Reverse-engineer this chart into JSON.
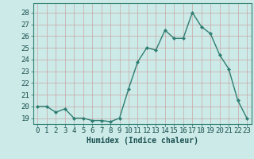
{
  "x": [
    0,
    1,
    2,
    3,
    4,
    5,
    6,
    7,
    8,
    9,
    10,
    11,
    12,
    13,
    14,
    15,
    16,
    17,
    18,
    19,
    20,
    21,
    22,
    23
  ],
  "y": [
    20,
    20,
    19.5,
    19.8,
    19,
    19,
    18.8,
    18.8,
    18.7,
    19,
    21.5,
    23.8,
    25,
    24.8,
    26.5,
    25.8,
    25.8,
    28,
    26.8,
    26.2,
    24.4,
    23.2,
    20.5,
    19
  ],
  "line_color": "#2e7d72",
  "marker": "D",
  "marker_size": 2.2,
  "line_width": 1.0,
  "bg_color": "#cceae7",
  "grid_color": "#c8a0a0",
  "xlabel": "Humidex (Indice chaleur)",
  "yticks": [
    19,
    20,
    21,
    22,
    23,
    24,
    25,
    26,
    27,
    28
  ],
  "ylim": [
    18.5,
    28.8
  ],
  "xlim": [
    -0.5,
    23.5
  ],
  "xticks": [
    0,
    1,
    2,
    3,
    4,
    5,
    6,
    7,
    8,
    9,
    10,
    11,
    12,
    13,
    14,
    15,
    16,
    17,
    18,
    19,
    20,
    21,
    22,
    23
  ],
  "font_size_label": 7,
  "font_size_tick": 6.5
}
